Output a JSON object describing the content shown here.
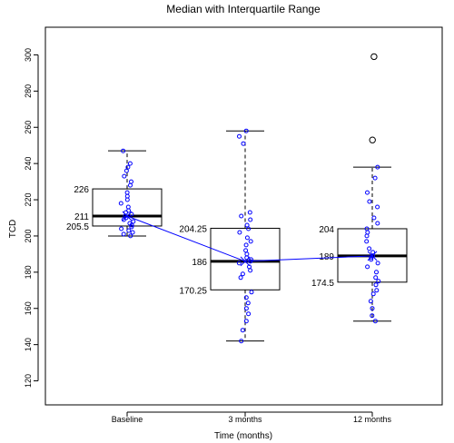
{
  "chart_data": {
    "type": "boxplot",
    "title": "Median with Interquartile Range",
    "xlabel": "Time (months)",
    "ylabel": "TCD",
    "ylim": [
      115,
      305
    ],
    "yticks": [
      120,
      140,
      160,
      180,
      200,
      220,
      240,
      260,
      280,
      300
    ],
    "grid": false,
    "categories": [
      "Baseline",
      "3 months",
      "12 months"
    ],
    "boxes": [
      {
        "category": "Baseline",
        "q1": 205.5,
        "median": 211,
        "q3": 226,
        "whisker_low": 200,
        "whisker_high": 247,
        "labels": {
          "q1": "205.5",
          "median": "211",
          "q3": "226"
        },
        "outliers": [],
        "points": [
          247,
          240,
          238,
          236,
          233,
          230,
          228,
          224,
          222,
          220,
          218,
          216,
          214,
          213,
          212,
          211,
          210,
          209,
          208,
          207,
          206,
          205,
          204,
          203,
          202,
          201,
          200
        ]
      },
      {
        "category": "3 months",
        "q1": 170.25,
        "median": 186,
        "q3": 204.25,
        "whisker_low": 142,
        "whisker_high": 258,
        "labels": {
          "q1": "170.25",
          "median": "186",
          "q3": "204.25"
        },
        "outliers": [],
        "points": [
          258,
          255,
          251,
          213,
          211,
          209,
          206,
          204,
          202,
          199,
          197,
          195,
          192,
          190,
          188,
          187,
          186,
          185,
          183,
          181,
          179,
          177,
          169,
          166,
          163,
          160,
          157,
          153,
          148,
          142
        ]
      },
      {
        "category": "12 months",
        "q1": 174.5,
        "median": 189,
        "q3": 204,
        "whisker_low": 153,
        "whisker_high": 238,
        "labels": {
          "q1": "174.5",
          "median": "189",
          "q3": "204"
        },
        "outliers": [
          299,
          253
        ],
        "points": [
          299,
          253,
          238,
          232,
          224,
          219,
          216,
          210,
          207,
          204,
          202,
          200,
          197,
          193,
          191,
          189,
          188,
          187,
          185,
          183,
          180,
          177,
          175,
          173,
          170,
          168,
          164,
          160,
          156,
          153
        ]
      }
    ],
    "mean_line": {
      "values": [
        211,
        186,
        189
      ],
      "color": "#0000ff"
    },
    "colors": {
      "points": "#0000ff",
      "box": "#000000"
    }
  }
}
